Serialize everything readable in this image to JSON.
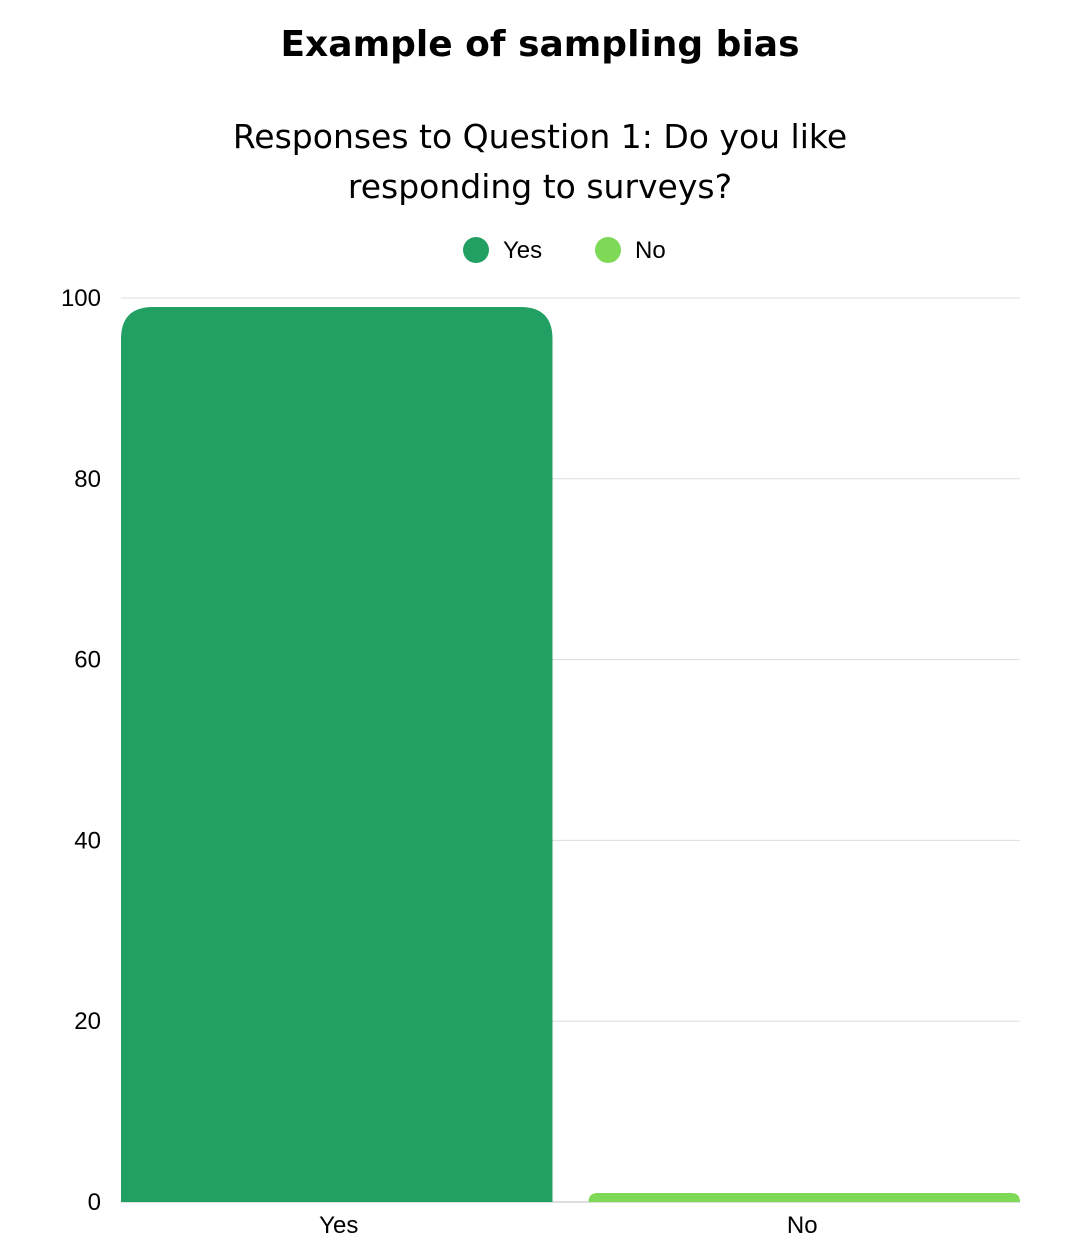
{
  "chart_data": {
    "type": "bar",
    "title": "Example of sampling bias",
    "subtitle": "Responses to Question 1: Do you like responding to surveys?",
    "categories": [
      "Yes",
      "No"
    ],
    "series": [
      {
        "name": "Yes",
        "values": [
          99,
          0
        ],
        "color": "#22a063"
      },
      {
        "name": "No",
        "values": [
          0,
          1
        ],
        "color": "#7ed957"
      }
    ],
    "ylim": [
      0,
      100
    ],
    "yticks": [
      0,
      20,
      40,
      60,
      80,
      100
    ],
    "grid": true,
    "legend": "top-center"
  }
}
